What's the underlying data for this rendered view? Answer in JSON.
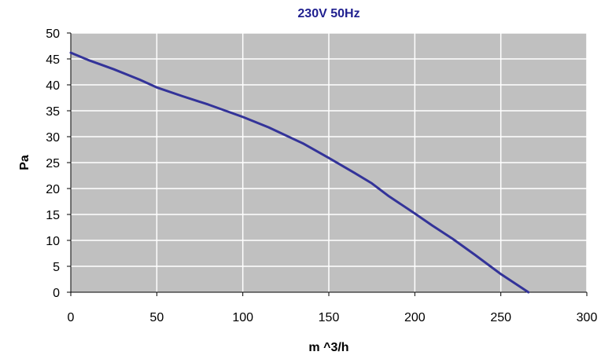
{
  "chart_data": {
    "type": "line",
    "title": "230V 50Hz",
    "xlabel": "m ^3/h",
    "ylabel": "Pa",
    "xlim": [
      0,
      300
    ],
    "ylim": [
      0,
      50
    ],
    "x_ticks": [
      0,
      50,
      100,
      150,
      200,
      250,
      300
    ],
    "y_ticks": [
      0,
      5,
      10,
      15,
      20,
      25,
      30,
      35,
      40,
      45,
      50
    ],
    "grid": true,
    "legend": "none",
    "series": [
      {
        "color": "#333399",
        "points": [
          [
            0,
            46.2
          ],
          [
            10,
            44.8
          ],
          [
            25,
            43.0
          ],
          [
            40,
            41.0
          ],
          [
            50,
            39.5
          ],
          [
            65,
            37.8
          ],
          [
            80,
            36.2
          ],
          [
            100,
            33.8
          ],
          [
            115,
            31.8
          ],
          [
            135,
            28.7
          ],
          [
            150,
            25.9
          ],
          [
            165,
            23.0
          ],
          [
            175,
            21.0
          ],
          [
            185,
            18.5
          ],
          [
            200,
            15.2
          ],
          [
            210,
            12.9
          ],
          [
            222,
            10.3
          ],
          [
            235,
            7.2
          ],
          [
            250,
            3.5
          ],
          [
            266,
            0
          ]
        ]
      }
    ],
    "colors": {
      "plot_background": "#c0c0c0",
      "gridline": "#ffffff",
      "title": "#1f1f8f",
      "axis": "#000000"
    }
  }
}
